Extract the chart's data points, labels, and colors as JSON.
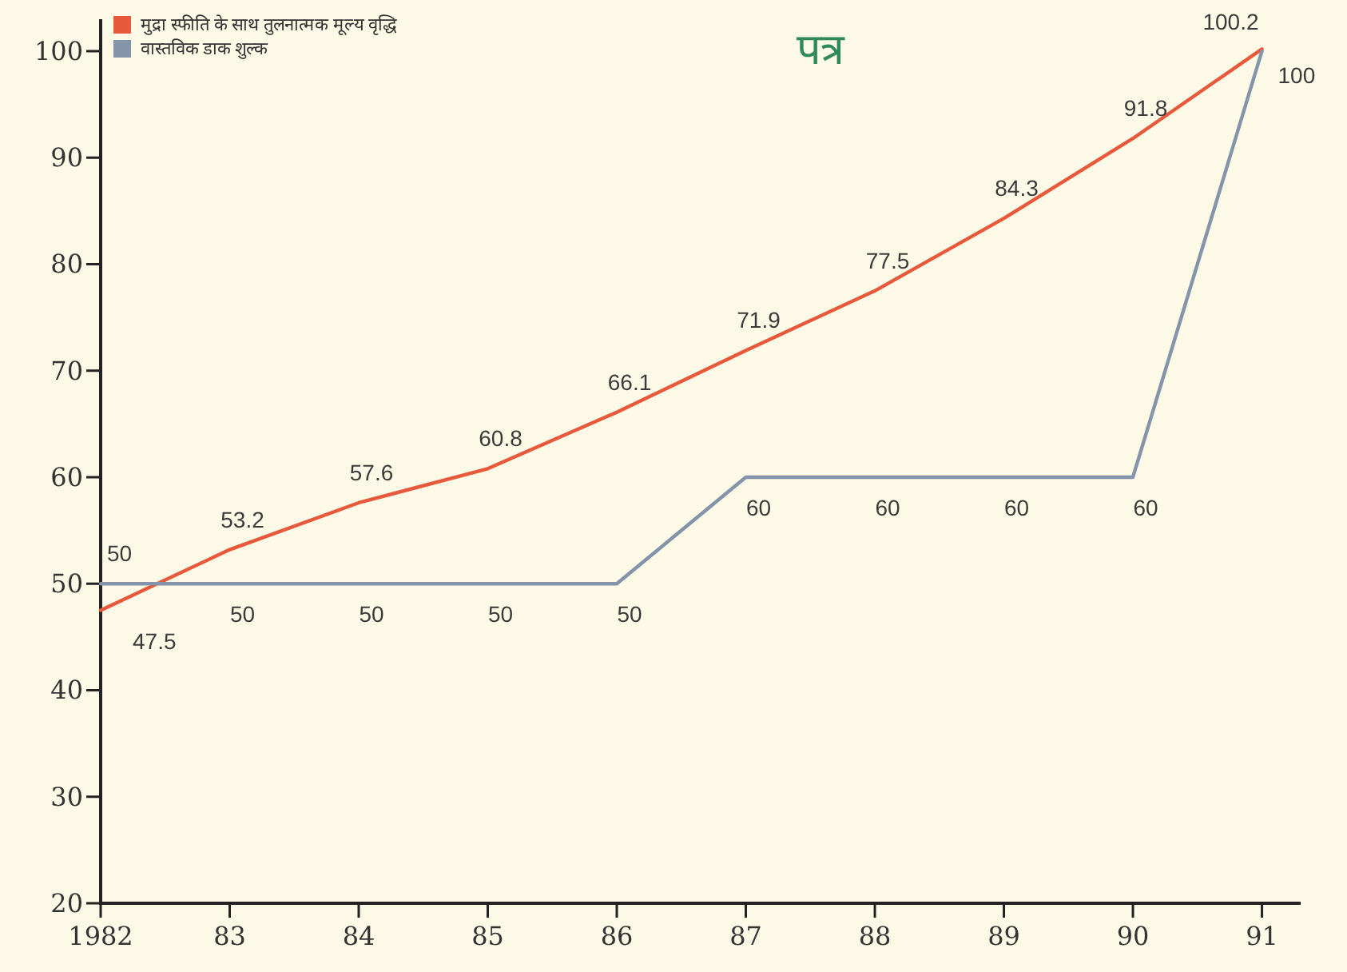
{
  "chart_data": {
    "type": "line",
    "title": "पत्र",
    "x": [
      1982,
      1983,
      1984,
      1985,
      1986,
      1987,
      1988,
      1989,
      1990,
      1991
    ],
    "series": [
      {
        "name": "मुद्रा स्फीति के साथ तुलनात्मक मूल्य वृद्धि",
        "color": "#e8583a",
        "values": [
          47.5,
          53.2,
          57.6,
          60.8,
          66.1,
          71.9,
          77.5,
          84.3,
          91.8,
          100.2
        ]
      },
      {
        "name": "वास्तविक डाक शुल्क",
        "color": "#8494ab",
        "values": [
          50,
          50,
          50,
          50,
          50,
          60,
          60,
          60,
          60,
          100
        ]
      }
    ],
    "xlim": [
      1982,
      1991.3
    ],
    "xticks": [
      1982,
      {
        "value": 1983,
        "label": "83"
      },
      {
        "value": 1984,
        "label": "84"
      },
      {
        "value": 1985,
        "label": "85"
      },
      {
        "value": 1986,
        "label": "86"
      },
      {
        "value": 1987,
        "label": "87"
      },
      {
        "value": 1988,
        "label": "88"
      },
      {
        "value": 1989,
        "label": "89"
      },
      {
        "value": 1990,
        "label": "90"
      },
      {
        "value": 1991,
        "label": "91"
      }
    ],
    "ylim": [
      20,
      103
    ],
    "yticks": [
      20,
      30,
      40,
      50,
      60,
      70,
      80,
      90,
      100
    ],
    "data_labels": true,
    "legend": "top left",
    "marker": "none",
    "line_style": "solid"
  }
}
